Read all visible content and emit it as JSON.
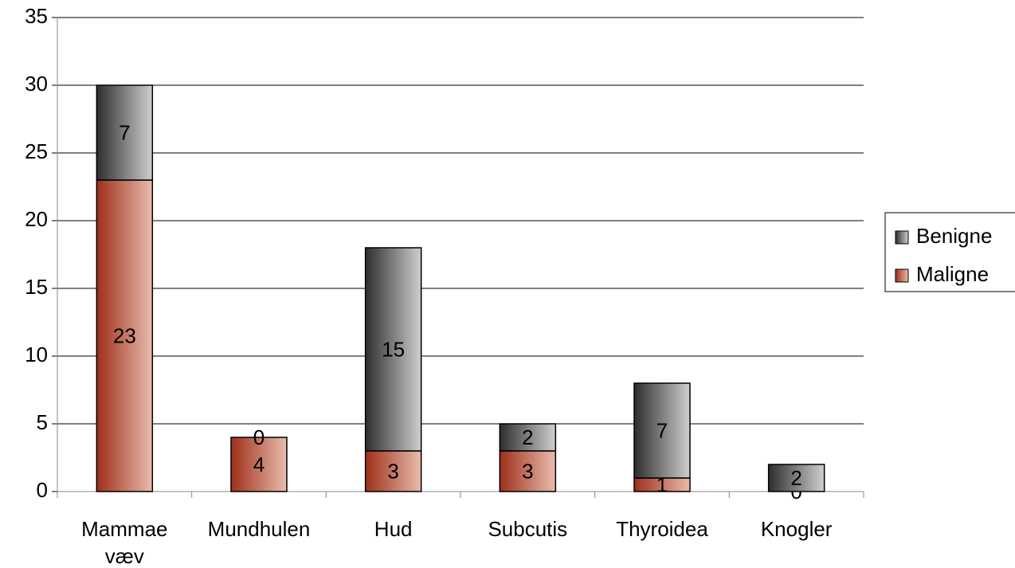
{
  "chart_data": {
    "type": "stacked-bar",
    "categories": [
      "Mammae væv",
      "Mundhulen",
      "Hud",
      "Subcutis",
      "Thyroidea",
      "Knogler"
    ],
    "series": [
      {
        "name": "Maligne",
        "color": [
          "#9e2f1a",
          "#e9bcad"
        ],
        "values": [
          23,
          4,
          3,
          3,
          1,
          0
        ]
      },
      {
        "name": "Benigne",
        "color": [
          "#2e2e2e",
          "#cfcfcf"
        ],
        "values": [
          7,
          0,
          15,
          2,
          7,
          2
        ]
      }
    ],
    "ylim": [
      0,
      35
    ],
    "yticks": [
      0,
      5,
      10,
      15,
      20,
      25,
      30,
      35
    ],
    "grid": true,
    "legend": "right"
  }
}
